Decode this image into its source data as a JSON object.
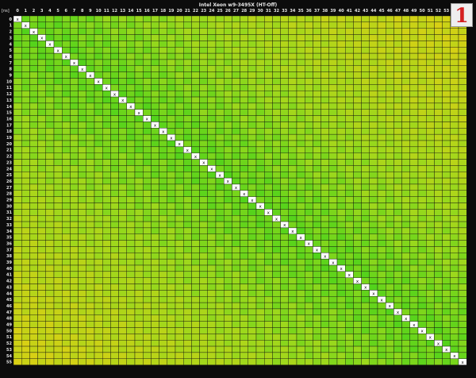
{
  "chart_data": {
    "type": "heatmap",
    "title": "Intel Xeon w9-3495X (HT-Off)",
    "unit_label": "[ns]",
    "cores": [
      0,
      1,
      2,
      3,
      4,
      5,
      6,
      7,
      8,
      9,
      10,
      11,
      12,
      13,
      14,
      15,
      16,
      17,
      18,
      19,
      20,
      21,
      22,
      23,
      24,
      25,
      26,
      27,
      28,
      29,
      30,
      31,
      32,
      33,
      34,
      35,
      36,
      37,
      38,
      39,
      40,
      41,
      42,
      43,
      44,
      45,
      46,
      47,
      48,
      49,
      50,
      51,
      52,
      53,
      54,
      55
    ],
    "diagonal_mark": "x",
    "colors": {
      "low": "#2fd11a",
      "mid": "#9bd81c",
      "high": "#d8d014",
      "grid": "#111111",
      "header_bg": "#0c0c0c",
      "header_text": "#e8e8e8"
    }
  },
  "badge": {
    "label": "1",
    "color": "#d42020"
  }
}
